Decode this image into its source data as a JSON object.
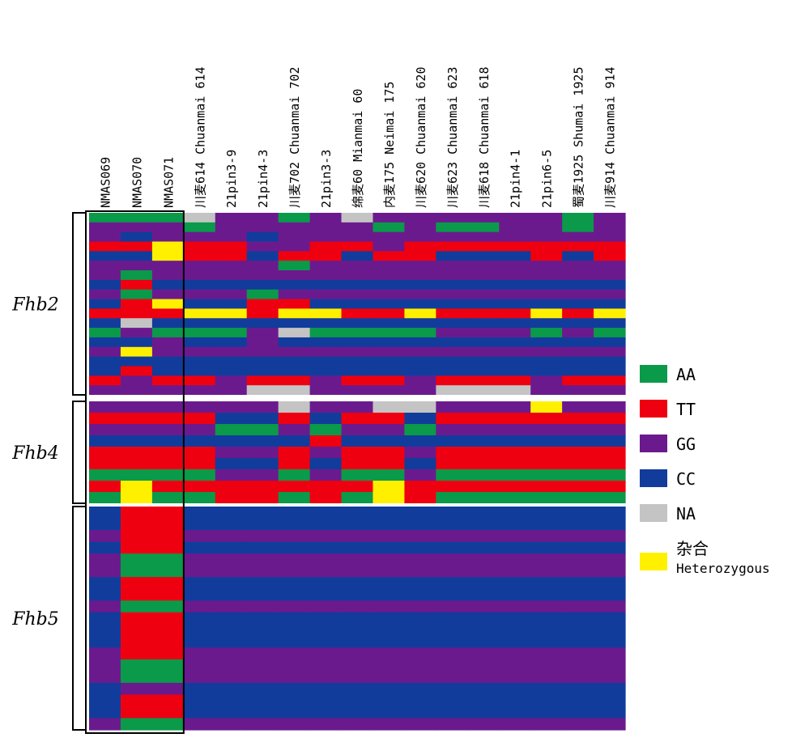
{
  "chart_data": {
    "type": "heatmap",
    "colors": {
      "A": "#0a9a4a",
      "T": "#ee0010",
      "G": "#6b1a8e",
      "C": "#113c9c",
      "N": "#c4c4c4",
      "H": "#fff000"
    },
    "columns": [
      "NMAS069",
      "NMAS070",
      "NMAS071",
      "川麦614 Chuanmai 614",
      "21pin3-9",
      "21pin4-3",
      "川麦702 Chuanmai 702",
      "21pin3-3",
      "绵麦60 Mianmai 60",
      "内麦175 Neimai 175",
      "川麦620 Chuanmai 620",
      "川麦623 Chuanmai 623",
      "川麦618 Chuanmai 618",
      "21pin4-1",
      "21pin6-5",
      "蜀麦1925 Shumai 1925",
      "川麦914 Chuanmai 914"
    ],
    "regions": [
      {
        "name": "Fhb2",
        "rows": [
          "AAANGGAGNGGGGGGAG",
          "GGGAGGGGGAGAAGGAG",
          "GCGGGCGGGGGGGGGGG",
          "TTHTTGGTTGTTTTTTT",
          "CCHTTCTTCTTCCCTCT",
          "GGGGGGAGGGGGGGGGG",
          "GAGGGGGGGGGGGGGGG",
          "CTCCCCCCCCCCCCCCC",
          "GAGGGAGGGGGGGGGGG",
          "CTHCCTTCCCCCCCCCC",
          "TTTHHTHHTTHTTTHTH",
          "CNCCCCCCCCCCCCCCC",
          "AGAAAGNAAAAGGGAGA",
          "CCGCCGCCCCCCCCCCC",
          "GHGGGGGGGGGGGGGGG",
          "CCCCCCCCCCCCCCCCC",
          "CTCCCCCCCCCCCCCCC",
          "TGTTGTTGTTGTTTGTT",
          "GGGGGNNGGGGNNNGGG"
        ]
      },
      {
        "name": "Fhb4",
        "rows": [
          "GGGGGGNGGNNGGGHGG",
          "TTTTCCTCTTCTTTTTT",
          "GGGGAAGAGGAGGGGGG",
          "CCCCCCCTCCCCCCCCC",
          "TTTTGGTGTTGTTTTTT",
          "TTTTCCTCTTCTTTTTT",
          "AAAAGGAGAAGAAAAAA",
          "THTTTTTTTHTTTTTTT",
          "AHAATTATAHTAAAAAA"
        ]
      },
      {
        "name": "Fhb5",
        "rows": [
          "CTTCCCCCCCCCCCCCC",
          "CTTCCCCCCCCCCCCCC",
          "GTTGGGGGGGGGGGGGG",
          "CTTCCCCCCCCCCCCCC",
          "GAAGGGGGGGGGGGGGG",
          "GAAGGGGGGGGGGGGGG",
          "CTTCCCCCCCCCCCCCC",
          "CTTCCCCCCCCCCCCCC",
          "GAAGGGGGGGGGGGGGG",
          "CTTCCCCCCCCCCCCCC",
          "CTTCCCCCCCCCCCCCC",
          "CTTCCCCCCCCCCCCCC",
          "GTTGGGGGGGGGGGGGG",
          "GAAGGGGGGGGGGGGGG",
          "GAAGGGGGGGGGGGGGG",
          "CGGCCCCCCCCCCCCCC",
          "CTTCCCCCCCCCCCCCC",
          "CTTCCCCCCCCCCCCCC",
          "GAAGGGGGGGGGGGGGG"
        ]
      }
    ],
    "legend": [
      {
        "code": "A",
        "label": "AA",
        "label2": ""
      },
      {
        "code": "T",
        "label": "TT",
        "label2": ""
      },
      {
        "code": "G",
        "label": "GG",
        "label2": ""
      },
      {
        "code": "C",
        "label": "CC",
        "label2": ""
      },
      {
        "code": "N",
        "label": "NA",
        "label2": ""
      },
      {
        "code": "H",
        "label": "杂合",
        "label2": "Heterozygous"
      }
    ]
  }
}
